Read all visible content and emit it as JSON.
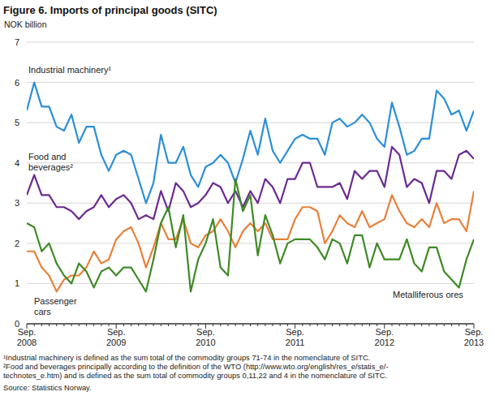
{
  "chart_data": {
    "type": "line",
    "title": "Figure 6. Imports of principal goods (SITC)",
    "y_label": "NOK billion",
    "categories": [
      "Sep. 2008",
      null,
      null,
      null,
      null,
      null,
      null,
      null,
      null,
      null,
      null,
      null,
      "Sep. 2009",
      null,
      null,
      null,
      null,
      null,
      null,
      null,
      null,
      null,
      null,
      null,
      "Sep. 2010",
      null,
      null,
      null,
      null,
      null,
      null,
      null,
      null,
      null,
      null,
      null,
      "Sep. 2011",
      null,
      null,
      null,
      null,
      null,
      null,
      null,
      null,
      null,
      null,
      null,
      "Sep. 2012",
      null,
      null,
      null,
      null,
      null,
      null,
      null,
      null,
      null,
      null,
      null,
      "Sep. 2013"
    ],
    "series": [
      {
        "name": "Industrial machinery¹",
        "color": "#2b8fd8",
        "values": [
          5.3,
          6.0,
          5.4,
          5.4,
          4.9,
          4.8,
          5.2,
          4.5,
          4.9,
          4.9,
          4.2,
          3.8,
          4.2,
          4.3,
          4.2,
          3.6,
          3.0,
          3.5,
          4.7,
          4.0,
          4.0,
          4.4,
          3.7,
          3.4,
          3.9,
          4.0,
          4.2,
          4.0,
          3.5,
          4.1,
          4.8,
          4.2,
          5.1,
          4.3,
          4.0,
          4.3,
          4.6,
          4.7,
          4.6,
          4.6,
          4.2,
          5.0,
          5.1,
          4.9,
          5.0,
          5.2,
          5.0,
          4.6,
          4.4,
          5.5,
          4.9,
          4.2,
          4.3,
          4.6,
          4.6,
          5.8,
          5.6,
          5.2,
          5.3,
          4.8,
          5.3
        ]
      },
      {
        "name": "Food and beverages²",
        "color": "#6b2a91",
        "values": [
          3.2,
          3.7,
          3.2,
          3.2,
          2.9,
          2.9,
          2.8,
          2.6,
          2.8,
          2.9,
          3.2,
          2.9,
          3.1,
          3.2,
          3.0,
          2.6,
          2.7,
          2.6,
          3.3,
          2.8,
          3.5,
          3.3,
          2.9,
          3.0,
          3.2,
          3.5,
          3.4,
          3.0,
          3.3,
          2.9,
          3.3,
          3.0,
          3.6,
          3.4,
          3.0,
          3.6,
          3.6,
          4.0,
          4.0,
          3.4,
          3.4,
          3.4,
          3.5,
          3.1,
          3.8,
          3.6,
          3.8,
          3.8,
          3.4,
          4.4,
          4.2,
          3.4,
          3.6,
          3.5,
          3.0,
          3.8,
          3.8,
          3.6,
          4.2,
          4.3,
          4.1
        ]
      },
      {
        "name": "Passenger cars",
        "color": "#e8803a",
        "values": [
          1.8,
          1.8,
          1.4,
          1.2,
          0.8,
          1.1,
          1.2,
          1.2,
          1.4,
          1.8,
          1.5,
          1.6,
          2.1,
          2.3,
          2.4,
          2.0,
          1.4,
          1.9,
          2.5,
          2.1,
          2.1,
          2.6,
          2.0,
          1.9,
          2.2,
          2.3,
          2.6,
          2.3,
          1.9,
          2.3,
          2.5,
          2.3,
          2.5,
          2.1,
          2.1,
          2.1,
          2.6,
          2.9,
          2.9,
          2.8,
          2.0,
          2.3,
          2.7,
          2.5,
          2.4,
          2.8,
          2.4,
          2.5,
          2.6,
          3.2,
          2.8,
          2.5,
          2.4,
          2.6,
          2.4,
          3.0,
          2.5,
          2.6,
          2.6,
          2.3,
          3.3
        ]
      },
      {
        "name": "Metalliferous ores",
        "color": "#3f8a26",
        "values": [
          2.5,
          2.4,
          1.8,
          2.0,
          1.5,
          1.2,
          1.0,
          1.5,
          1.3,
          0.9,
          1.3,
          1.4,
          1.2,
          1.4,
          1.4,
          1.1,
          0.8,
          1.6,
          2.5,
          2.9,
          1.9,
          2.7,
          0.8,
          1.6,
          2.0,
          2.6,
          1.4,
          1.2,
          3.6,
          2.8,
          3.2,
          1.7,
          2.7,
          2.2,
          1.5,
          2.0,
          2.1,
          2.1,
          2.1,
          1.9,
          1.6,
          2.1,
          2.0,
          1.5,
          2.2,
          2.2,
          1.4,
          2.0,
          1.6,
          1.6,
          1.6,
          2.1,
          1.5,
          1.3,
          1.9,
          1.9,
          1.3,
          1.1,
          0.9,
          1.6,
          2.1
        ]
      }
    ],
    "ylim": [
      0,
      7
    ],
    "yticks": [
      0,
      1,
      2,
      3,
      4,
      5,
      6,
      7
    ],
    "grid": true,
    "footnotes": [
      "¹Industrial machinery is defined as the sum total of the commodity groups 71-74 in the nomenclature of SITC.",
      "²Food and beverages principally according to the definition of the WTO (http://www.wto.org/english/res_e/statis_e/-",
      "technotes_e.htm) and is defined as the sum total of commodity groups 0,11,22 and 4 in the nomenclature of SITC."
    ],
    "source": "Source: Statistics Norway."
  }
}
